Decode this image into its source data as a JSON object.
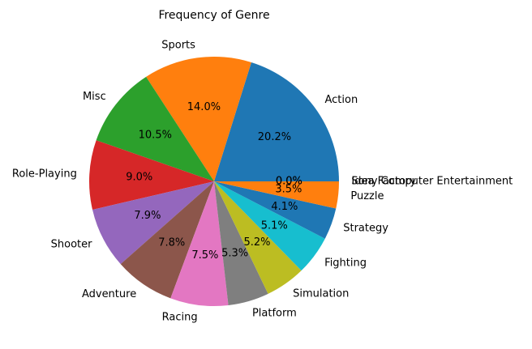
{
  "chart_data": {
    "type": "pie",
    "title": "Frequency of Genre",
    "start_angle": 0,
    "direction": "counterclockwise",
    "slices": [
      {
        "label": "Action",
        "value": 20.2,
        "pct_label": "20.2%",
        "color": "#1f77b4"
      },
      {
        "label": "Sports",
        "value": 14.0,
        "pct_label": "14.0%",
        "color": "#ff7f0e"
      },
      {
        "label": "Misc",
        "value": 10.5,
        "pct_label": "10.5%",
        "color": "#2ca02c"
      },
      {
        "label": "Role-Playing",
        "value": 9.0,
        "pct_label": "9.0%",
        "color": "#d62728"
      },
      {
        "label": "Shooter",
        "value": 7.9,
        "pct_label": "7.9%",
        "color": "#9467bd"
      },
      {
        "label": "Adventure",
        "value": 7.8,
        "pct_label": "7.8%",
        "color": "#8c564b"
      },
      {
        "label": "Racing",
        "value": 7.5,
        "pct_label": "7.5%",
        "color": "#e377c2"
      },
      {
        "label": "Platform",
        "value": 5.3,
        "pct_label": "5.3%",
        "color": "#7f7f7f"
      },
      {
        "label": "Simulation",
        "value": 5.2,
        "pct_label": "5.2%",
        "color": "#bcbd22"
      },
      {
        "label": "Fighting",
        "value": 5.1,
        "pct_label": "5.1%",
        "color": "#17becf"
      },
      {
        "label": "Strategy",
        "value": 4.1,
        "pct_label": "4.1%",
        "color": "#1f77b4"
      },
      {
        "label": "Puzzle",
        "value": 3.5,
        "pct_label": "3.5%",
        "color": "#ff7f0e"
      },
      {
        "label": "Idea Factory",
        "value": 0.0,
        "pct_label": "0.0%",
        "color": "#2ca02c"
      },
      {
        "label": "Sony Computer Entertainment",
        "value": 0.0,
        "pct_label": "0.0%",
        "color": "#d62728"
      }
    ]
  }
}
